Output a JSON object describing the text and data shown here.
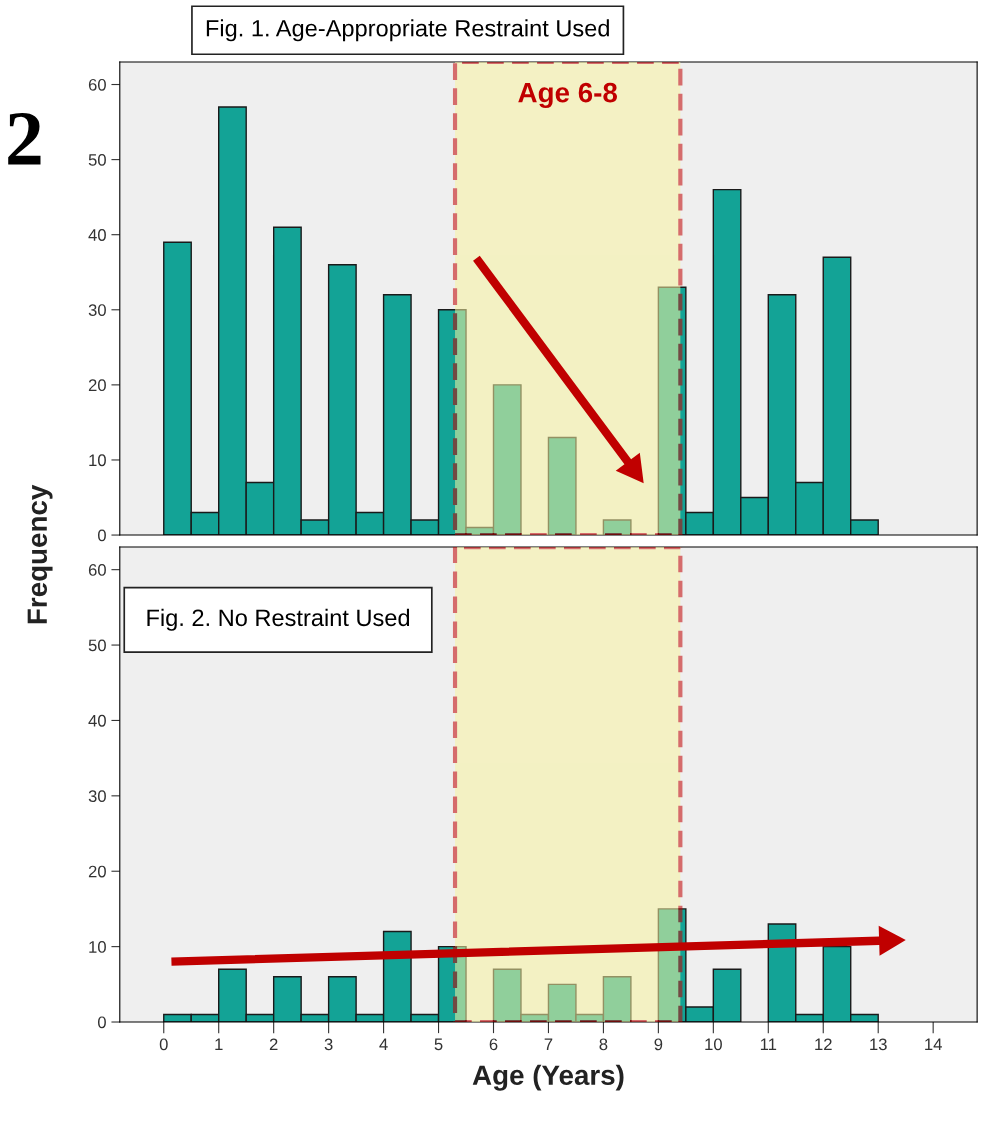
{
  "chart_data": [
    {
      "type": "histogram",
      "title": "Fig. 1. Age-Appropriate Restraint Used",
      "ylabel": "Frequency",
      "annotations": [
        "2"
      ],
      "bins": [
        0,
        0.5,
        1,
        1.5,
        2,
        2.5,
        3,
        3.5,
        4,
        4.5,
        5,
        5.5,
        6,
        6.5,
        7,
        7.5,
        8,
        8.5,
        9,
        9.5,
        10,
        10.5,
        11,
        11.5,
        12,
        12.5,
        13
      ],
      "values": [
        39,
        3,
        57,
        7,
        41,
        2,
        36,
        3,
        32,
        2,
        30,
        1,
        20,
        0,
        13,
        0,
        2,
        0,
        33,
        3,
        46,
        5,
        32,
        7,
        37,
        2
      ],
      "color": "#13a396",
      "xlim": [
        -0.8,
        14.8
      ],
      "ylim": [
        0,
        63
      ],
      "xticks": [
        0,
        1,
        2,
        3,
        4,
        5,
        6,
        7,
        8,
        9,
        10,
        11,
        12,
        13,
        14
      ],
      "yticks": [
        0,
        10,
        20,
        30,
        40,
        50,
        60
      ],
      "tick_labels": "y",
      "bands": [
        {
          "axis": "x",
          "from": 5.3,
          "to": 9.4,
          "label": "Age 6-8",
          "color": "#c00000"
        }
      ]
    },
    {
      "type": "histogram",
      "title": "Fig. 2. No Restraint Used",
      "xlabel": "Age (Years)",
      "bins": [
        0,
        0.5,
        1,
        1.5,
        2,
        2.5,
        3,
        3.5,
        4,
        4.5,
        5,
        5.5,
        6,
        6.5,
        7,
        7.5,
        8,
        8.5,
        9,
        9.5,
        10,
        10.5,
        11,
        11.5,
        12,
        12.5,
        13
      ],
      "values": [
        1,
        1,
        7,
        1,
        6,
        1,
        6,
        1,
        12,
        1,
        10,
        0,
        7,
        1,
        5,
        1,
        6,
        0,
        15,
        2,
        7,
        0,
        13,
        1,
        10,
        1
      ],
      "color": "#13a396",
      "xlim": [
        -0.8,
        14.8
      ],
      "ylim": [
        0,
        63
      ],
      "xticks": [
        0,
        1,
        2,
        3,
        4,
        5,
        6,
        7,
        8,
        9,
        10,
        11,
        12,
        13,
        14
      ],
      "yticks": [
        0,
        10,
        20,
        30,
        40,
        50,
        60
      ],
      "bands": [
        {
          "axis": "x",
          "from": 5.3,
          "to": 9.4,
          "color": "#c00000"
        }
      ]
    }
  ]
}
